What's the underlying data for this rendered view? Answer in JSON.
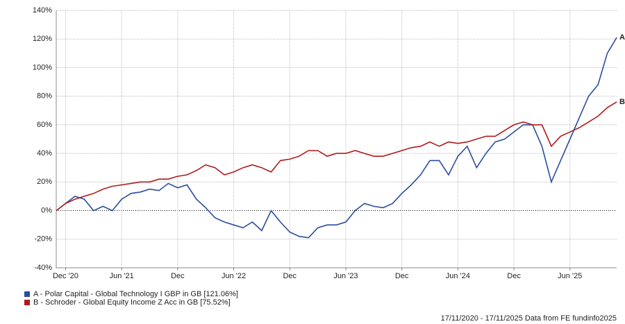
{
  "chart_data": {
    "type": "line",
    "x": [
      "2020-11",
      "2020-12",
      "2021-01",
      "2021-02",
      "2021-03",
      "2021-04",
      "2021-05",
      "2021-06",
      "2021-07",
      "2021-08",
      "2021-09",
      "2021-10",
      "2021-11",
      "2021-12",
      "2022-01",
      "2022-02",
      "2022-03",
      "2022-04",
      "2022-05",
      "2022-06",
      "2022-07",
      "2022-08",
      "2022-09",
      "2022-10",
      "2022-11",
      "2022-12",
      "2023-01",
      "2023-02",
      "2023-03",
      "2023-04",
      "2023-05",
      "2023-06",
      "2023-07",
      "2023-08",
      "2023-09",
      "2023-10",
      "2023-11",
      "2023-12",
      "2024-01",
      "2024-02",
      "2024-03",
      "2024-04",
      "2024-05",
      "2024-06",
      "2024-07",
      "2024-08",
      "2024-09",
      "2024-10",
      "2024-11",
      "2024-12",
      "2025-01",
      "2025-02",
      "2025-03",
      "2025-04",
      "2025-05",
      "2025-06",
      "2025-07",
      "2025-08",
      "2025-09",
      "2025-10",
      "2025-11"
    ],
    "xlim": [
      "2020-11",
      "2025-11"
    ],
    "xticks": [
      {
        "value": "2020-12",
        "label": "Dec '20"
      },
      {
        "value": "2021-06",
        "label": "Jun '21"
      },
      {
        "value": "2021-12",
        "label": "Dec"
      },
      {
        "value": "2022-06",
        "label": "Jun '22"
      },
      {
        "value": "2022-12",
        "label": "Dec"
      },
      {
        "value": "2023-06",
        "label": "Jun '23"
      },
      {
        "value": "2023-12",
        "label": "Dec"
      },
      {
        "value": "2024-06",
        "label": "Jun '24"
      },
      {
        "value": "2024-12",
        "label": "Dec"
      },
      {
        "value": "2025-06",
        "label": "Jun '25"
      }
    ],
    "ylim": [
      -40,
      140
    ],
    "yticks": [
      {
        "value": -40,
        "label": "-40%"
      },
      {
        "value": -20,
        "label": "-20%"
      },
      {
        "value": 0,
        "label": "0%"
      },
      {
        "value": 20,
        "label": "20%"
      },
      {
        "value": 40,
        "label": "40%"
      },
      {
        "value": 60,
        "label": "60%"
      },
      {
        "value": 80,
        "label": "80%"
      },
      {
        "value": 100,
        "label": "100%"
      },
      {
        "value": 120,
        "label": "120%"
      },
      {
        "value": 140,
        "label": "140%"
      }
    ],
    "grid": true,
    "series": [
      {
        "name": "A - Polar Capital - Global Technology I GBP in GB [121.06%]",
        "label": "A",
        "color": "#2a4d9e",
        "values": [
          0,
          5,
          10,
          8,
          0,
          3,
          0,
          8,
          12,
          13,
          15,
          14,
          19,
          16,
          18,
          8,
          2,
          -5,
          -8,
          -10,
          -12,
          -8,
          -14,
          0,
          -8,
          -15,
          -18,
          -19,
          -12,
          -10,
          -10,
          -8,
          0,
          5,
          3,
          2,
          5,
          12,
          18,
          25,
          35,
          35,
          25,
          38,
          45,
          30,
          40,
          48,
          50,
          55,
          60,
          60,
          45,
          20,
          35,
          50,
          65,
          80,
          88,
          110,
          121
        ]
      },
      {
        "name": "B - Schroder - Global Equity Income Z Acc in GB [75.52%]",
        "label": "B",
        "color": "#b01a1a",
        "values": [
          0,
          5,
          8,
          10,
          12,
          15,
          17,
          18,
          19,
          20,
          20,
          22,
          22,
          24,
          25,
          28,
          32,
          30,
          25,
          27,
          30,
          32,
          30,
          27,
          35,
          36,
          38,
          42,
          42,
          38,
          40,
          40,
          42,
          40,
          38,
          38,
          40,
          42,
          44,
          45,
          48,
          45,
          48,
          47,
          48,
          50,
          52,
          52,
          56,
          60,
          62,
          60,
          60,
          45,
          52,
          55,
          58,
          62,
          66,
          72,
          76
        ]
      }
    ],
    "footer": "17/11/2020 - 17/11/2025 Data from FE fundinfo2025"
  }
}
